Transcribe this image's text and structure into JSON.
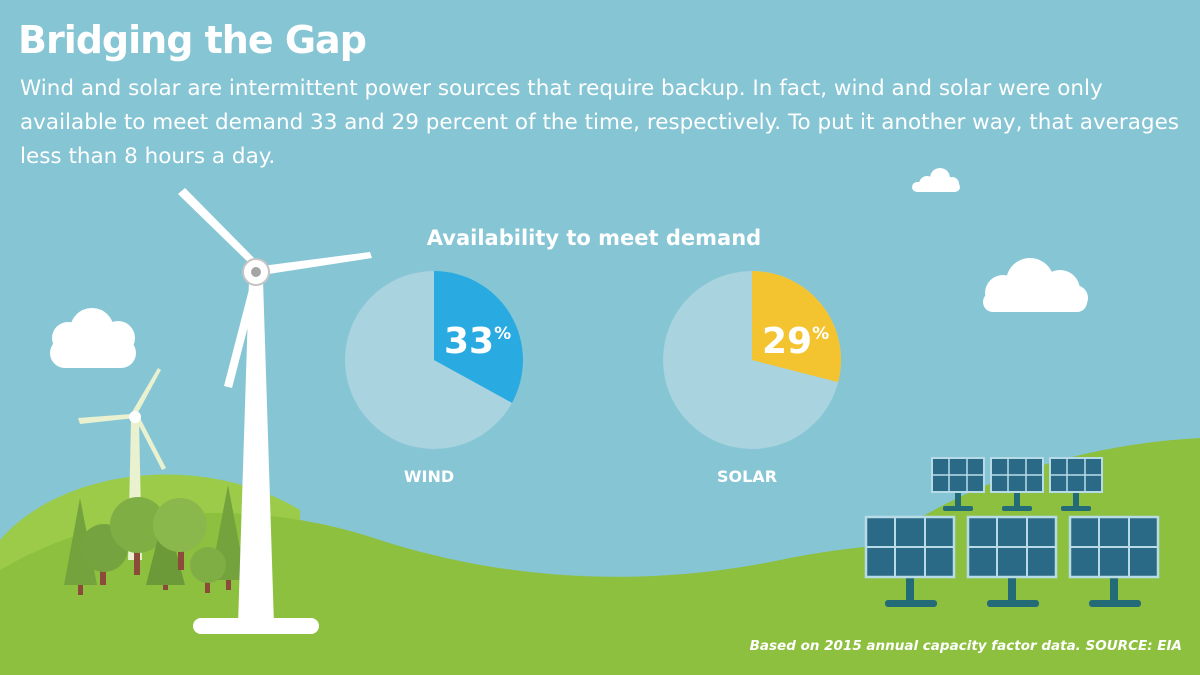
{
  "page": {
    "title": "Bridging the Gap",
    "description": "Wind and solar are intermittent power sources that require backup. In fact, wind and solar were only available to meet demand 33 and 29 percent of the time, respectively. To put it another way, that averages less than 8 hours a day.",
    "source": "Based on 2015 annual capacity factor data. SOURCE: EIA"
  },
  "colors": {
    "sky": "#86c5d4",
    "grass": "#8dc03f",
    "grass_back": "#9ccb4a",
    "pie_base": "#a8d3df",
    "wind": "#29abe2",
    "solar": "#f4c430"
  },
  "chart_data": {
    "type": "pie",
    "title": "Availability to meet demand",
    "categories": [
      "WIND",
      "SOLAR"
    ],
    "values": [
      33,
      29
    ],
    "unit": "%",
    "series_colors": [
      "#29abe2",
      "#f4c430"
    ]
  }
}
